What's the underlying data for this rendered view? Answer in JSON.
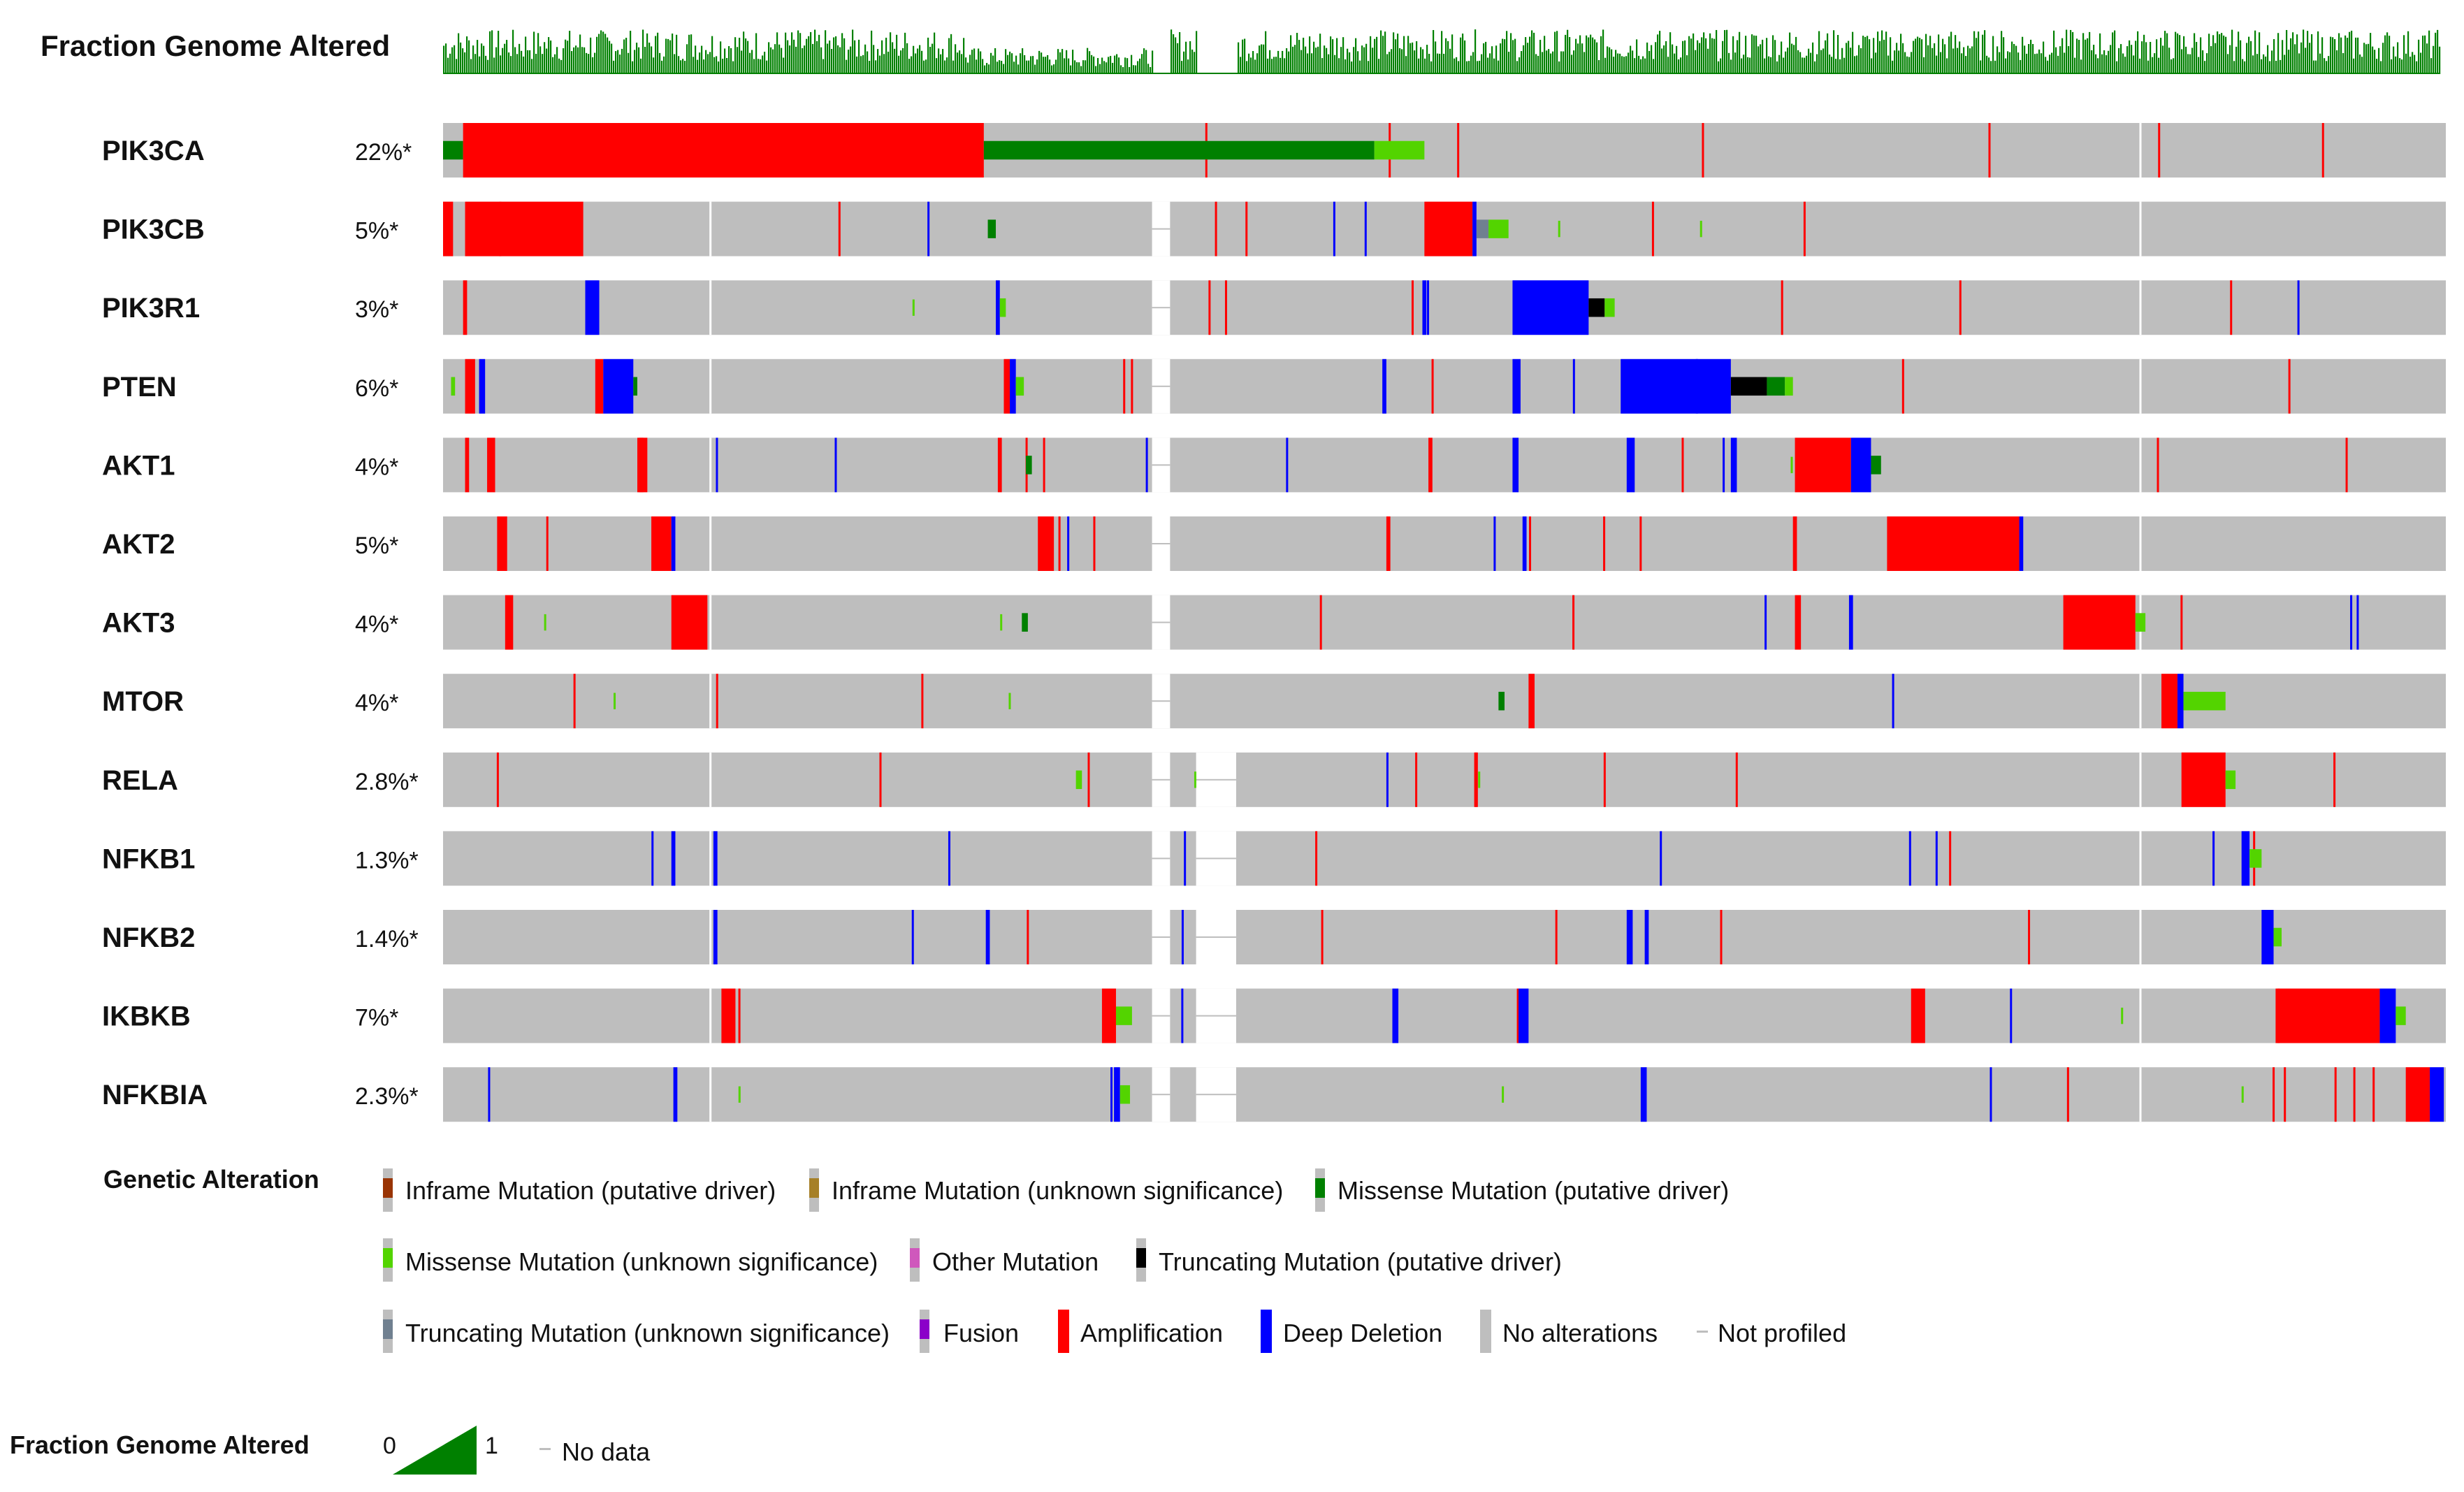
{
  "chart_data": {
    "type": "oncoprint",
    "track_title": "Fraction Genome Altered",
    "genes": [
      {
        "name": "PIK3CA",
        "pct": "22%*"
      },
      {
        "name": "PIK3CB",
        "pct": "5%*"
      },
      {
        "name": "PIK3R1",
        "pct": "3%*"
      },
      {
        "name": "PTEN",
        "pct": "6%*"
      },
      {
        "name": "AKT1",
        "pct": "4%*"
      },
      {
        "name": "AKT2",
        "pct": "5%*"
      },
      {
        "name": "AKT3",
        "pct": "4%*"
      },
      {
        "name": "MTOR",
        "pct": "4%*"
      },
      {
        "name": "RELA",
        "pct": "2.8%*"
      },
      {
        "name": "NFKB1",
        "pct": "1.3%*"
      },
      {
        "name": "NFKB2",
        "pct": "1.4%*"
      },
      {
        "name": "IKBKB",
        "pct": "7%*"
      },
      {
        "name": "NFKBIA",
        "pct": "2.3%*"
      }
    ],
    "sample_gaps": [
      [
        0.354,
        0.363
      ],
      [
        0.376,
        0.396
      ]
    ],
    "alterations": [
      [
        {
          "s": 0.0,
          "e": 0.01,
          "t": "missense_driver"
        },
        {
          "s": 0.01,
          "e": 0.27,
          "t": "amp"
        },
        {
          "s": 0.27,
          "e": 0.465,
          "t": "missense_driver"
        },
        {
          "s": 0.465,
          "e": 0.49,
          "t": "missense_unknown"
        }
      ],
      [
        {
          "s": 0.0,
          "e": 0.005,
          "t": "amp"
        },
        {
          "s": 0.011,
          "e": 0.07,
          "t": "amp"
        },
        {
          "s": 0.272,
          "e": 0.276,
          "t": "missense_driver"
        },
        {
          "s": 0.49,
          "e": 0.514,
          "t": "amp"
        },
        {
          "s": 0.514,
          "e": 0.516,
          "t": "deep_del"
        },
        {
          "s": 0.516,
          "e": 0.522,
          "t": "trunc_unknown"
        },
        {
          "s": 0.522,
          "e": 0.532,
          "t": "missense_unknown"
        }
      ],
      [
        {
          "s": 0.01,
          "e": 0.012,
          "t": "amp"
        },
        {
          "s": 0.071,
          "e": 0.078,
          "t": "deep_del"
        },
        {
          "s": 0.276,
          "e": 0.278,
          "t": "deep_del"
        },
        {
          "s": 0.278,
          "e": 0.281,
          "t": "missense_unknown"
        },
        {
          "s": 0.489,
          "e": 0.491,
          "t": "deep_del"
        },
        {
          "s": 0.534,
          "e": 0.572,
          "t": "deep_del"
        },
        {
          "s": 0.572,
          "e": 0.58,
          "t": "trunc_driver"
        },
        {
          "s": 0.58,
          "e": 0.585,
          "t": "missense_unknown"
        }
      ],
      [
        {
          "s": 0.004,
          "e": 0.006,
          "t": "missense_unknown"
        },
        {
          "s": 0.011,
          "e": 0.016,
          "t": "amp"
        },
        {
          "s": 0.018,
          "e": 0.021,
          "t": "deep_del"
        },
        {
          "s": 0.076,
          "e": 0.08,
          "t": "amp"
        },
        {
          "s": 0.08,
          "e": 0.095,
          "t": "deep_del"
        },
        {
          "s": 0.095,
          "e": 0.097,
          "t": "missense_driver"
        },
        {
          "s": 0.28,
          "e": 0.283,
          "t": "amp"
        },
        {
          "s": 0.283,
          "e": 0.286,
          "t": "deep_del"
        },
        {
          "s": 0.286,
          "e": 0.29,
          "t": "missense_unknown"
        },
        {
          "s": 0.469,
          "e": 0.471,
          "t": "deep_del"
        },
        {
          "s": 0.534,
          "e": 0.538,
          "t": "deep_del"
        },
        {
          "s": 0.588,
          "e": 0.643,
          "t": "deep_del"
        },
        {
          "s": 0.643,
          "e": 0.661,
          "t": "trunc_driver"
        },
        {
          "s": 0.661,
          "e": 0.67,
          "t": "missense_driver"
        },
        {
          "s": 0.67,
          "e": 0.674,
          "t": "missense_unknown"
        }
      ],
      [
        {
          "s": 0.011,
          "e": 0.013,
          "t": "amp"
        },
        {
          "s": 0.022,
          "e": 0.026,
          "t": "amp"
        },
        {
          "s": 0.098,
          "e": 0.1,
          "t": "amp"
        },
        {
          "s": 0.097,
          "e": 0.102,
          "t": "amp"
        },
        {
          "s": 0.277,
          "e": 0.279,
          "t": "amp"
        },
        {
          "s": 0.291,
          "e": 0.294,
          "t": "missense_driver"
        },
        {
          "s": 0.492,
          "e": 0.494,
          "t": "amp"
        },
        {
          "s": 0.534,
          "e": 0.537,
          "t": "deep_del"
        },
        {
          "s": 0.591,
          "e": 0.595,
          "t": "deep_del"
        },
        {
          "s": 0.643,
          "e": 0.646,
          "t": "deep_del"
        },
        {
          "s": 0.675,
          "e": 0.703,
          "t": "amp"
        },
        {
          "s": 0.703,
          "e": 0.713,
          "t": "deep_del"
        },
        {
          "s": 0.713,
          "e": 0.718,
          "t": "missense_driver"
        }
      ],
      [
        {
          "s": 0.027,
          "e": 0.032,
          "t": "amp"
        },
        {
          "s": 0.104,
          "e": 0.114,
          "t": "amp"
        },
        {
          "s": 0.114,
          "e": 0.116,
          "t": "deep_del"
        },
        {
          "s": 0.297,
          "e": 0.305,
          "t": "amp"
        },
        {
          "s": 0.471,
          "e": 0.473,
          "t": "amp"
        },
        {
          "s": 0.539,
          "e": 0.541,
          "t": "deep_del"
        },
        {
          "s": 0.674,
          "e": 0.676,
          "t": "amp"
        },
        {
          "s": 0.721,
          "e": 0.787,
          "t": "amp"
        },
        {
          "s": 0.787,
          "e": 0.789,
          "t": "deep_del"
        }
      ],
      [
        {
          "s": 0.031,
          "e": 0.035,
          "t": "amp"
        },
        {
          "s": 0.114,
          "e": 0.132,
          "t": "amp"
        },
        {
          "s": 0.289,
          "e": 0.292,
          "t": "missense_driver"
        },
        {
          "s": 0.675,
          "e": 0.678,
          "t": "amp"
        },
        {
          "s": 0.702,
          "e": 0.704,
          "t": "deep_del"
        },
        {
          "s": 0.809,
          "e": 0.845,
          "t": "amp"
        },
        {
          "s": 0.845,
          "e": 0.85,
          "t": "missense_unknown"
        }
      ],
      [
        {
          "s": 0.527,
          "e": 0.53,
          "t": "missense_driver"
        },
        {
          "s": 0.542,
          "e": 0.545,
          "t": "amp"
        },
        {
          "s": 0.858,
          "e": 0.866,
          "t": "amp"
        },
        {
          "s": 0.866,
          "e": 0.869,
          "t": "deep_del"
        },
        {
          "s": 0.869,
          "e": 0.89,
          "t": "missense_unknown"
        }
      ],
      [
        {
          "s": 0.316,
          "e": 0.319,
          "t": "missense_unknown"
        },
        {
          "s": 0.868,
          "e": 0.89,
          "t": "amp"
        },
        {
          "s": 0.89,
          "e": 0.895,
          "t": "missense_unknown"
        }
      ],
      [
        {
          "s": 0.114,
          "e": 0.116,
          "t": "deep_del"
        },
        {
          "s": 0.135,
          "e": 0.137,
          "t": "deep_del"
        },
        {
          "s": 0.898,
          "e": 0.902,
          "t": "deep_del"
        },
        {
          "s": 0.902,
          "e": 0.908,
          "t": "missense_unknown"
        }
      ],
      [
        {
          "s": 0.135,
          "e": 0.137,
          "t": "deep_del"
        },
        {
          "s": 0.271,
          "e": 0.273,
          "t": "deep_del"
        },
        {
          "s": 0.591,
          "e": 0.594,
          "t": "deep_del"
        },
        {
          "s": 0.6,
          "e": 0.602,
          "t": "deep_del"
        },
        {
          "s": 0.908,
          "e": 0.914,
          "t": "deep_del"
        },
        {
          "s": 0.914,
          "e": 0.918,
          "t": "missense_unknown"
        }
      ],
      [
        {
          "s": 0.139,
          "e": 0.146,
          "t": "amp"
        },
        {
          "s": 0.329,
          "e": 0.336,
          "t": "amp"
        },
        {
          "s": 0.336,
          "e": 0.344,
          "t": "missense_unknown"
        },
        {
          "s": 0.474,
          "e": 0.477,
          "t": "deep_del"
        },
        {
          "s": 0.537,
          "e": 0.542,
          "t": "deep_del"
        },
        {
          "s": 0.733,
          "e": 0.74,
          "t": "amp"
        },
        {
          "s": 0.915,
          "e": 0.967,
          "t": "amp"
        },
        {
          "s": 0.967,
          "e": 0.975,
          "t": "deep_del"
        },
        {
          "s": 0.975,
          "e": 0.98,
          "t": "missense_unknown"
        }
      ],
      [
        {
          "s": 0.115,
          "e": 0.117,
          "t": "deep_del"
        },
        {
          "s": 0.335,
          "e": 0.338,
          "t": "deep_del"
        },
        {
          "s": 0.338,
          "e": 0.343,
          "t": "missense_unknown"
        },
        {
          "s": 0.598,
          "e": 0.601,
          "t": "deep_del"
        },
        {
          "s": 0.98,
          "e": 0.992,
          "t": "amp"
        },
        {
          "s": 0.992,
          "e": 0.999,
          "t": "deep_del"
        }
      ]
    ]
  },
  "legend": {
    "title": "Genetic Alteration",
    "items": [
      {
        "label": "Inframe Mutation (putative driver)",
        "color": "#993404"
      },
      {
        "label": "Inframe Mutation (unknown significance)",
        "color": "#a68028"
      },
      {
        "label": "Missense Mutation (putative driver)",
        "color": "#008000"
      },
      {
        "label": "Missense Mutation (unknown significance)",
        "color": "#53d400"
      },
      {
        "label": "Other Mutation",
        "color": "#cf58bc"
      },
      {
        "label": "Truncating Mutation (putative driver)",
        "color": "#000000"
      },
      {
        "label": "Truncating Mutation (unknown significance)",
        "color": "#708090"
      },
      {
        "label": "Fusion",
        "color": "#8b00c9"
      },
      {
        "label": "Amplification",
        "color": "#ff0000"
      },
      {
        "label": "Deep Deletion",
        "color": "#0000ff"
      },
      {
        "label": "No alterations",
        "color": "#bebebe"
      },
      {
        "label": "Not profiled",
        "color": "#bebebe"
      }
    ]
  },
  "fga_legend": {
    "title": "Fraction Genome Altered",
    "min": "0",
    "max": "1",
    "nodata": "No data"
  },
  "colors": {
    "amp": "#ff0000",
    "deep_del": "#0000ff",
    "missense_driver": "#008000",
    "missense_unknown": "#53d400",
    "trunc_driver": "#000000",
    "trunc_unknown": "#708090",
    "no_alt": "#bebebe",
    "fga": "#008000",
    "separator": "#ffffff"
  }
}
